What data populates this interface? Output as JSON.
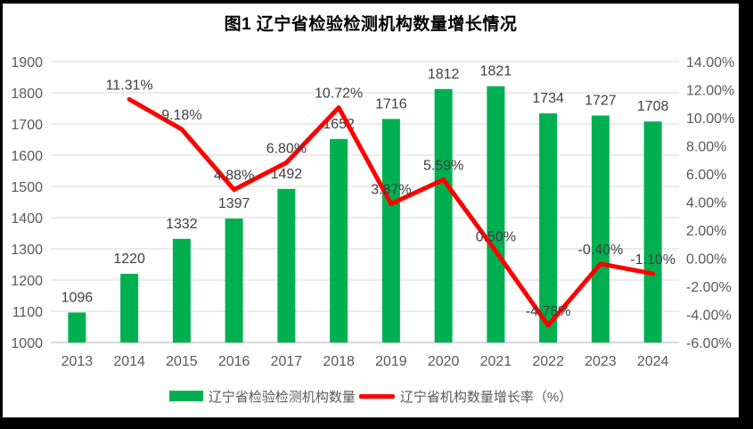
{
  "title": "图1 辽宁省检验检测机构数量增长情况",
  "legend": {
    "bar_label": "辽宁省检验检测机构数量",
    "line_label": "辽宁省机构数量增长率（%）"
  },
  "colors": {
    "bar": "#00B050",
    "line": "#FF0000",
    "grid": "#D9D9D9",
    "axis_line": "#BFBFBF",
    "tick_text": "#595959",
    "label_text": "#404040",
    "frame": "#000000"
  },
  "chart_data": {
    "type": "bar+line combo",
    "title": "图1 辽宁省检验检测机构数量增长情况",
    "categories": [
      "2013",
      "2014",
      "2015",
      "2016",
      "2017",
      "2018",
      "2019",
      "2020",
      "2021",
      "2022",
      "2023",
      "2024"
    ],
    "series": [
      {
        "name": "辽宁省检验检测机构数量",
        "type": "bar",
        "axis": "primary",
        "values": [
          1096,
          1220,
          1332,
          1397,
          1492,
          1652,
          1716,
          1812,
          1821,
          1734,
          1727,
          1708
        ],
        "labels": [
          "1096",
          "1220",
          "1332",
          "1397",
          "1492",
          "1652",
          "1716",
          "1812",
          "1821",
          "1734",
          "1727",
          "1708"
        ]
      },
      {
        "name": "辽宁省机构数量增长率（%）",
        "type": "line",
        "axis": "secondary",
        "values": [
          null,
          11.31,
          9.18,
          4.88,
          6.8,
          10.72,
          3.87,
          5.59,
          0.5,
          -4.78,
          -0.4,
          -1.1
        ],
        "labels": [
          null,
          "11.31%",
          "9.18%",
          "4.88%",
          "6.80%",
          "10.72%",
          "3.87%",
          "5.59%",
          "0.50%",
          "-4.78%",
          "-0.40%",
          "-1.10%"
        ]
      }
    ],
    "primary_axis": {
      "min": 1000,
      "max": 1900,
      "step": 100,
      "tick_labels": [
        "1000",
        "1100",
        "1200",
        "1300",
        "1400",
        "1500",
        "1600",
        "1700",
        "1800",
        "1900"
      ]
    },
    "secondary_axis": {
      "min": -6,
      "max": 14,
      "step": 2,
      "tick_labels": [
        "-6.00%",
        "-4.00%",
        "-2.00%",
        "0.00%",
        "2.00%",
        "4.00%",
        "6.00%",
        "8.00%",
        "10.00%",
        "12.00%",
        "14.00%"
      ]
    },
    "grid": true,
    "legend_position": "bottom"
  }
}
